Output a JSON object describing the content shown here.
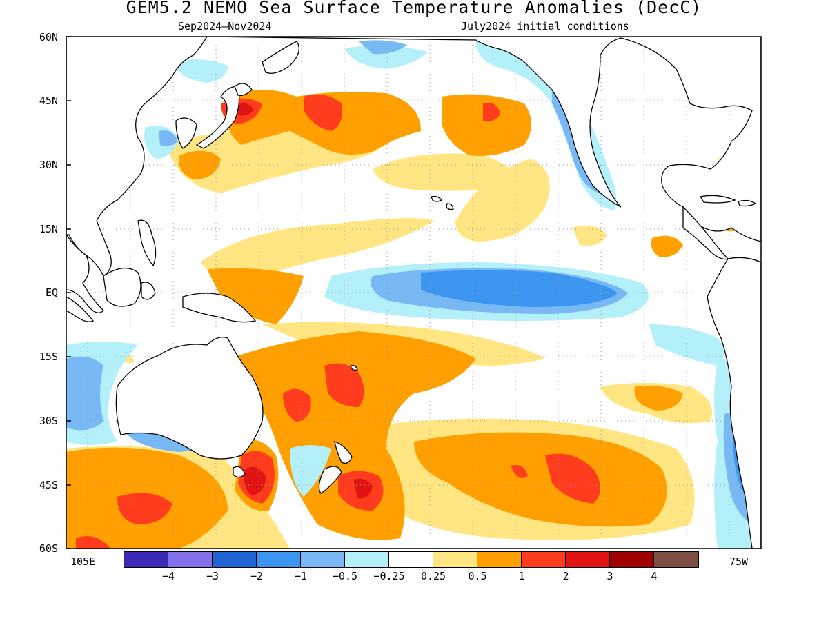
{
  "title": "GEM5.2_NEMO Sea Surface Temperature Anomalies (DecC)",
  "subtitle_left": "Sep2024–Nov2024",
  "subtitle_right": "July2024 initial conditions",
  "axes": {
    "lat_labels": [
      "60N",
      "45N",
      "30N",
      "15N",
      "EQ",
      "15S",
      "30S",
      "45S",
      "60S"
    ],
    "lon_left": "105E",
    "lon_right": "75W"
  },
  "colorbar": {
    "colors": [
      "#3c2ab4",
      "#8271e8",
      "#1e64d2",
      "#3c96f0",
      "#78b9f5",
      "#b4f0fa",
      "#ffffff",
      "#ffe682",
      "#ffa000",
      "#ff3c1e",
      "#e11414",
      "#a00000",
      "#7d5043"
    ],
    "labels": [
      "−4",
      "−3",
      "−2",
      "−1",
      "−0.5",
      "−0.25",
      "0.25",
      "0.5",
      "1",
      "2",
      "3",
      "4"
    ]
  },
  "map": {
    "region": "Pacific Ocean",
    "lat_range": [
      -60,
      60
    ],
    "lon_range": [
      "105E",
      "75W"
    ],
    "grid": true
  }
}
